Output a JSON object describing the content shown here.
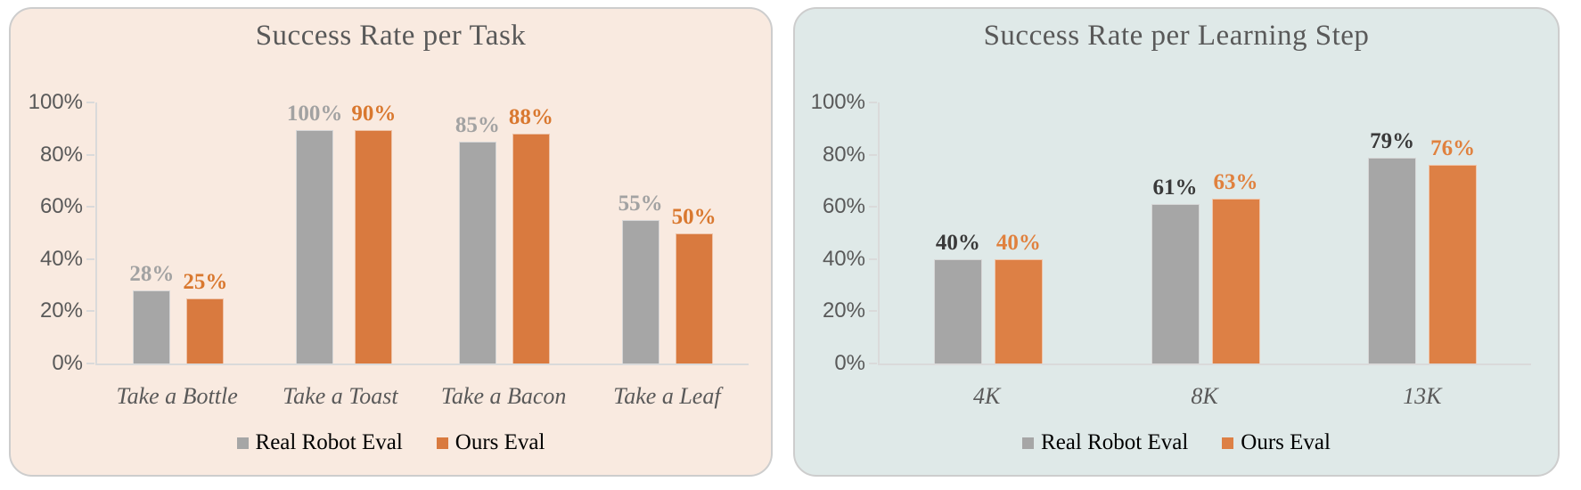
{
  "chart_data": [
    {
      "type": "bar",
      "title": "Success Rate per Task",
      "categories": [
        "Take a Bottle",
        "Take a Toast",
        "Take a Bacon",
        "Take a Leaf"
      ],
      "series": [
        {
          "name": "Real Robot Eval",
          "values": [
            28,
            100,
            85,
            55
          ],
          "color": "#a6a6a6",
          "value_label_color": "#a2a2a2"
        },
        {
          "name": "Ours Eval",
          "values": [
            25,
            90,
            88,
            50
          ],
          "color": "#d97a3f",
          "value_label_color": "#d9782f"
        }
      ],
      "value_suffix": "%",
      "xlabel": "",
      "ylabel": "",
      "ylim": [
        0,
        100
      ],
      "yticks": [
        "0%",
        "20%",
        "40%",
        "60%",
        "80%",
        "100%"
      ],
      "grid": false,
      "legend_position": "bottom",
      "panel_background": "#f9eae0",
      "title_color": "#595959",
      "axis_color": "#dadada",
      "tick_label_color": "#595959",
      "category_label_color": "#595959"
    },
    {
      "type": "bar",
      "title": "Success Rate per Learning Step",
      "categories": [
        "4K",
        "8K",
        "13K"
      ],
      "series": [
        {
          "name": "Real Robot Eval",
          "values": [
            40,
            61,
            79
          ],
          "color": "#a6a6a6",
          "value_label_color": "#393939"
        },
        {
          "name": "Ours Eval",
          "values": [
            40,
            63,
            76
          ],
          "color": "#dd8045",
          "value_label_color": "#e0813e"
        }
      ],
      "value_suffix": "%",
      "xlabel": "",
      "ylabel": "",
      "ylim": [
        0,
        100
      ],
      "yticks": [
        "0%",
        "20%",
        "40%",
        "60%",
        "80%",
        "100%"
      ],
      "grid": false,
      "legend_position": "bottom",
      "panel_background": "#dfe9e8",
      "title_color": "#595959",
      "axis_color": "#dadada",
      "tick_label_color": "#595959",
      "category_label_color": "#595959"
    }
  ]
}
